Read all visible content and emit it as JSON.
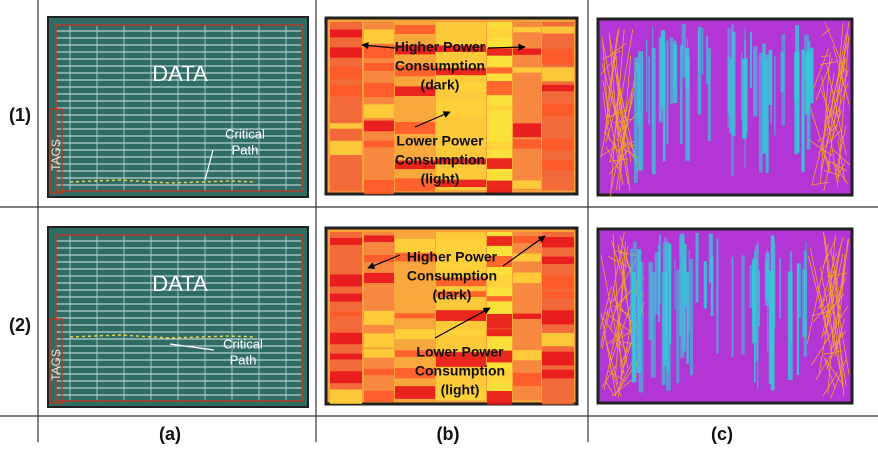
{
  "row_labels": [
    "(1)",
    "(2)"
  ],
  "column_labels": [
    "(a)",
    "(b)",
    "(c)"
  ],
  "rows": [
    {
      "layout": {
        "data": "DATA",
        "tags": "TAGS",
        "critical_path": [
          "Critical",
          "Path"
        ]
      },
      "power_map": {
        "higher": [
          "Higher Power",
          "Consumption",
          "(dark)"
        ],
        "lower": [
          "Lower Power",
          "Consumption",
          "(light)"
        ]
      }
    },
    {
      "layout": {
        "data": "DATA",
        "tags": "TAGS",
        "critical_path": [
          "Critical",
          "Path"
        ]
      },
      "power_map": {
        "higher": [
          "Higher Power",
          "Consumption",
          "(dark)"
        ],
        "lower": [
          "Lower Power",
          "Consumption",
          "(light)"
        ]
      }
    }
  ]
}
